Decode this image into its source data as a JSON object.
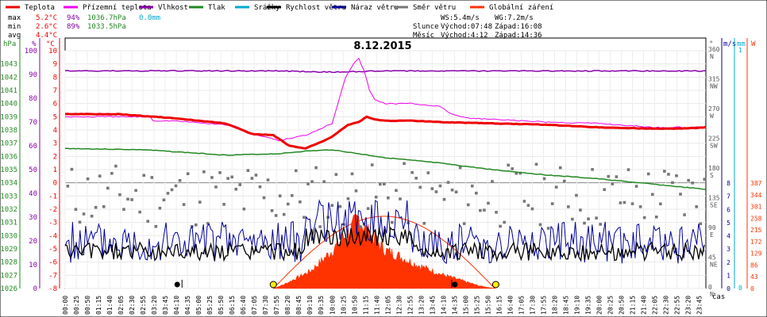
{
  "chart_data": {
    "type": "line",
    "title": "8.12.2015",
    "colors": {
      "temperature": "#ee0000",
      "apparent": "#ee00ee",
      "humidity": "#8800aa",
      "pressure": "#228822",
      "rain": "#00aacc",
      "wind_speed": "#000000",
      "wind_gust": "#000099",
      "wind_dir": "#777777",
      "radiation": "#ff3300",
      "frame_bg": "#e0e0e0"
    },
    "legend": [
      {
        "key": "temperature",
        "label": "Teplota"
      },
      {
        "key": "apparent",
        "label": "Přízemní teplota"
      },
      {
        "key": "humidity",
        "label": "Vlhkost"
      },
      {
        "key": "pressure",
        "label": "Tlak"
      },
      {
        "key": "rain",
        "label": "Srážky"
      },
      {
        "key": "wind_speed",
        "label": "Rychlost větru"
      },
      {
        "key": "wind_gust",
        "label": "Náraz větru"
      },
      {
        "key": "wind_dir",
        "label": "Směr větru"
      },
      {
        "key": "radiation",
        "label": "Globální záření"
      }
    ],
    "stats": {
      "max": {
        "label": "max",
        "temp": "5.2°C",
        "hum": "94%",
        "press": "1036.7hPa",
        "rain": "0.0mm"
      },
      "min": {
        "label": "min",
        "temp": "2.6°C",
        "hum": "89%",
        "press": "1033.5hPa"
      },
      "avg": {
        "label": "avg",
        "temp": "4.4°C"
      }
    },
    "wind_summary": {
      "ws": "WS:5.4m/s",
      "wg": "WG:7.2m/s"
    },
    "sun": {
      "label": "Slunce",
      "rise": "Východ:07:48",
      "set": "Západ:16:08"
    },
    "moon": {
      "label": "Měsíc",
      "rise": "Východ:4:12",
      "set": "Západ:14:36"
    },
    "axes": {
      "hpa_label": "hPa",
      "pct_label": "%",
      "temp_label": "°C",
      "deg_label": "°",
      "ms_label": "m/s",
      "mm_label": "mm",
      "w_label": "W",
      "x_label": "čas",
      "hpa_ticks": [
        "1043",
        "1042",
        "1041",
        "1040",
        "1039",
        "1038",
        "1037",
        "1036",
        "1035",
        "1034",
        "1033",
        "1032",
        "1031",
        "1030",
        "1029",
        "1028",
        "1027",
        "1026"
      ],
      "pct_ticks": [
        "100",
        "90",
        "80",
        "70",
        "60",
        "50",
        "40",
        "30",
        "20",
        "10",
        "0"
      ],
      "temp_ticks": [
        "10",
        "9",
        "8",
        "7",
        "6",
        "5",
        "4",
        "3",
        "2",
        "1",
        "0",
        "-1",
        "-2",
        "-3",
        "-4",
        "-5",
        "-6",
        "-7",
        "-8"
      ],
      "dir_ticks": [
        {
          "deg": "360",
          "dir": "N"
        },
        {
          "deg": "315",
          "dir": "NW"
        },
        {
          "deg": "270",
          "dir": "W"
        },
        {
          "deg": "225",
          "dir": "SW"
        },
        {
          "deg": "180",
          "dir": "S"
        },
        {
          "deg": "135",
          "dir": "SE"
        },
        {
          "deg": "90",
          "dir": "E"
        },
        {
          "deg": "45",
          "dir": "NE"
        },
        {
          "deg": "0",
          "dir": "N"
        }
      ],
      "ms_ticks": [
        "8",
        "7",
        "6",
        "5",
        "4",
        "3",
        "2",
        "1",
        "0"
      ],
      "mm_ticks": [
        "1",
        "0"
      ],
      "w_ticks": [
        "387",
        "344",
        "301",
        "258",
        "215",
        "172",
        "129",
        "86",
        "43",
        "0"
      ],
      "temp_range": [
        -8,
        10
      ],
      "time_ticks": [
        "00:00",
        "00:25",
        "00:50",
        "01:15",
        "01:40",
        "02:05",
        "02:30",
        "02:55",
        "03:20",
        "03:45",
        "04:10",
        "04:35",
        "05:00",
        "05:25",
        "05:50",
        "06:15",
        "06:40",
        "07:05",
        "07:30",
        "07:55",
        "08:20",
        "08:45",
        "09:10",
        "09:35",
        "10:00",
        "10:25",
        "10:50",
        "11:15",
        "11:40",
        "12:05",
        "12:30",
        "12:55",
        "13:20",
        "13:45",
        "14:10",
        "14:35",
        "15:00",
        "15:25",
        "15:50",
        "16:15",
        "16:40",
        "17:05",
        "17:30",
        "17:55",
        "18:20",
        "18:45",
        "19:10",
        "19:35",
        "20:00",
        "20:25",
        "20:50",
        "21:15",
        "21:40",
        "22:05",
        "22:30",
        "22:55",
        "23:20",
        "23:45"
      ]
    },
    "series": {
      "temperature": {
        "x_hours": [
          0,
          2,
          4,
          5,
          6,
          7,
          7.8,
          8.4,
          9,
          9.6,
          10,
          10.6,
          11,
          11.3,
          11.6,
          12,
          13,
          14,
          16,
          18,
          20,
          22,
          23,
          24
        ],
        "y": [
          5.2,
          5.2,
          4.9,
          4.7,
          4.5,
          3.7,
          3.6,
          2.8,
          2.6,
          3.1,
          3.5,
          4.4,
          4.6,
          5.0,
          4.8,
          4.7,
          4.7,
          4.6,
          4.5,
          4.4,
          4.2,
          4.1,
          4.1,
          4.2
        ]
      },
      "apparent": {
        "x_hours": [
          0,
          2,
          3.2,
          3.3,
          4,
          6,
          7.4,
          8,
          9,
          10,
          10.5,
          10.8,
          11,
          11.2,
          11.4,
          11.6,
          12,
          13,
          14,
          14.5,
          15,
          18,
          20,
          22,
          24
        ],
        "y": [
          5.0,
          5.0,
          5.0,
          4.7,
          4.7,
          4.4,
          3.5,
          3.2,
          3.6,
          4.5,
          8.0,
          9.0,
          9.4,
          8.5,
          7.0,
          6.3,
          6.0,
          6.0,
          5.8,
          5.2,
          4.9,
          4.6,
          4.5,
          4.2,
          4.2
        ]
      },
      "humidity": {
        "x_hours": [
          0,
          4,
          8,
          10,
          12,
          16,
          20,
          24
        ],
        "y": [
          91.5,
          91.5,
          91.5,
          91.0,
          91.5,
          91.5,
          91.5,
          91.5
        ]
      },
      "pressure": {
        "x_hours": [
          0,
          3,
          6,
          8,
          9,
          10,
          11,
          12,
          14,
          16,
          18,
          20,
          22,
          23.5,
          24
        ],
        "y": [
          1036.6,
          1036.5,
          1036.1,
          1036.2,
          1036.4,
          1036.5,
          1036.2,
          1035.9,
          1035.5,
          1035.0,
          1034.6,
          1034.3,
          1033.9,
          1033.6,
          1033.5
        ]
      },
      "wind_speed": {
        "mean_ms": 2.8
      },
      "wind_gust": {
        "mean_ms": 3.5
      },
      "radiation": {
        "x_hours": [
          7.8,
          8.2,
          8.7,
          9.2,
          9.7,
          10.2,
          10.7,
          11,
          11.3,
          11.6,
          12,
          12.5,
          13,
          13.5,
          14,
          14.5,
          15,
          15.5,
          16.1
        ],
        "y": [
          0,
          15,
          40,
          65,
          110,
          160,
          215,
          260,
          210,
          180,
          140,
          120,
          95,
          75,
          55,
          40,
          25,
          10,
          0
        ]
      },
      "radiation_max_curve": {
        "peak_w": 265,
        "start_h": 7.8,
        "end_h": 16.1
      }
    },
    "events": {
      "sunrise_h": 7.8,
      "sunset_h": 16.13,
      "moonrise_h": 4.2,
      "moonset_h": 14.6
    }
  }
}
